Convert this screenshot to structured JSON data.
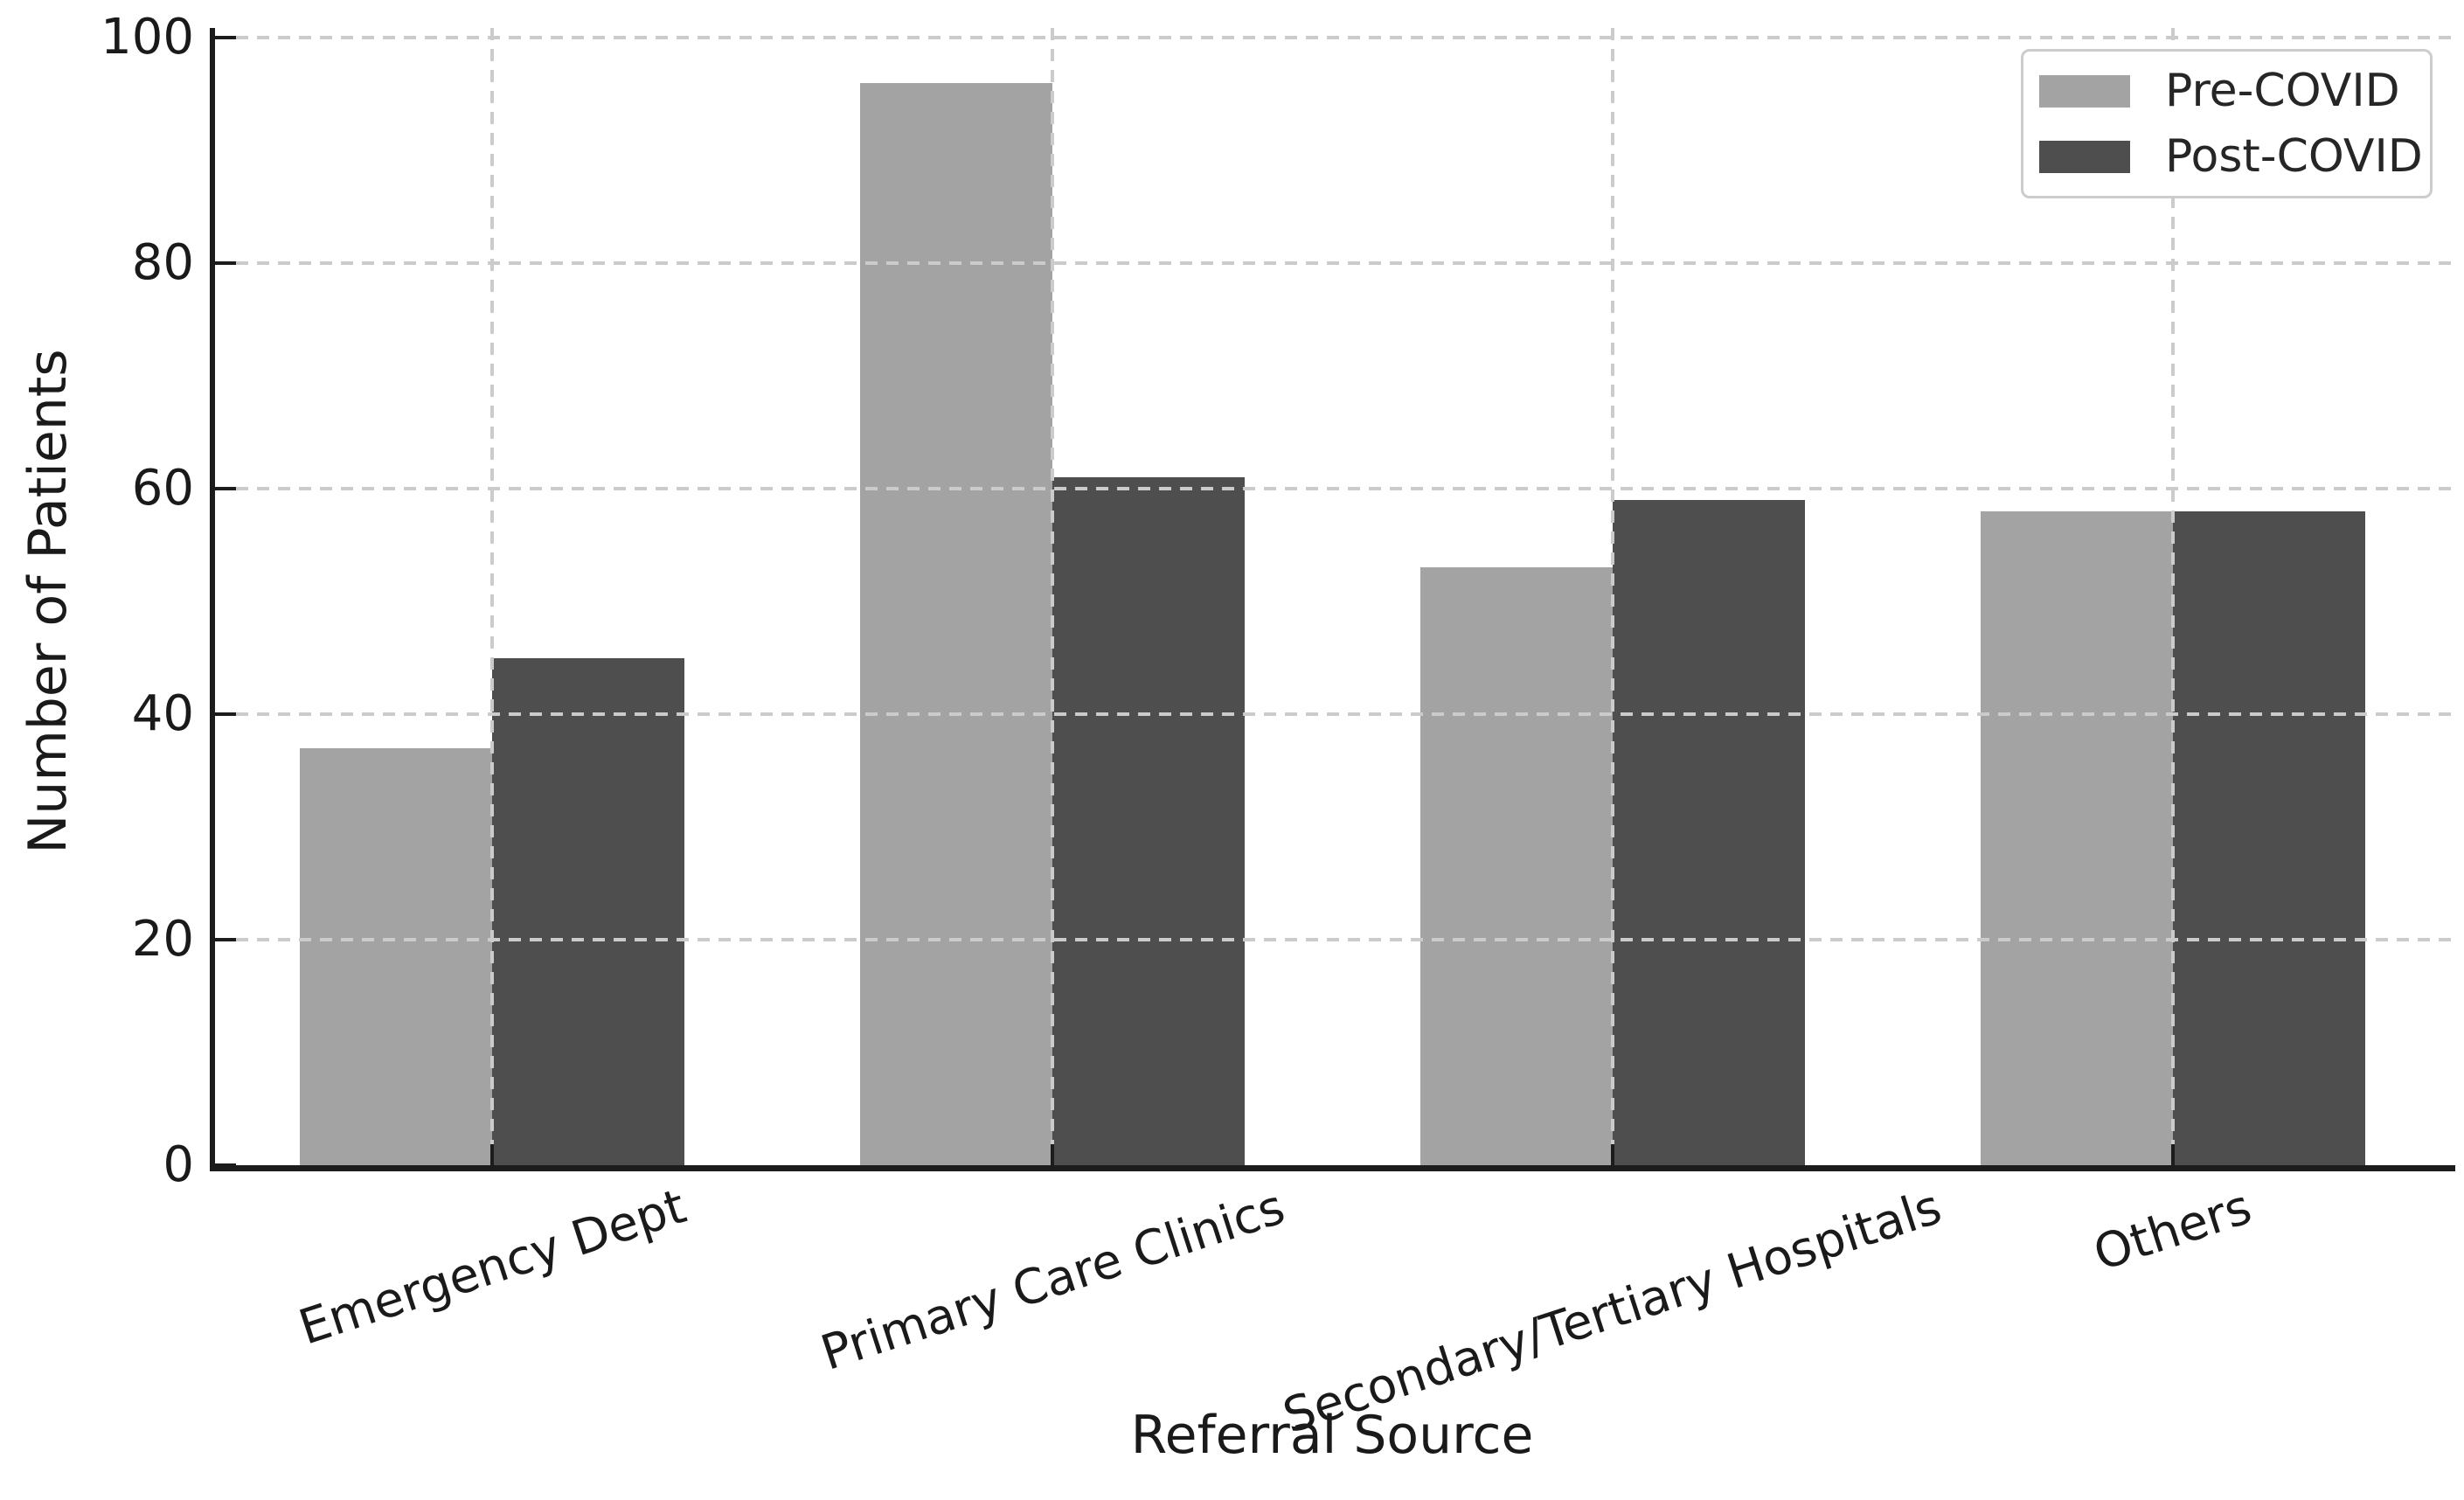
{
  "chart_data": {
    "type": "bar",
    "title": "",
    "categories": [
      "Emergency Dept",
      "Primary Care Clinics",
      "Secondary/Tertiary Hospitals",
      "Others"
    ],
    "series": [
      {
        "name": "Pre-COVID",
        "color": "#a3a3a3",
        "values": [
          37,
          96,
          53,
          58
        ]
      },
      {
        "name": "Post-COVID",
        "color": "#4e4e4e",
        "values": [
          45,
          61,
          59,
          58
        ]
      }
    ],
    "xlabel": "Referral Source",
    "ylabel": "Number of Patients",
    "ylim": [
      0,
      100
    ],
    "yticks": [
      0,
      20,
      40,
      60,
      80,
      100
    ],
    "grid": "dashed, both axes, drawn above bars",
    "legend_position": "upper right",
    "bar_layout": "grouped, two bars touching at category center",
    "xtick_label_rotation_deg": 18
  },
  "colors": {
    "background": "#ffffff",
    "grid": "#cbcbcb",
    "axis": "#1c1c1c",
    "text": "#1a1a1a",
    "legend_border": "#cccccc"
  }
}
